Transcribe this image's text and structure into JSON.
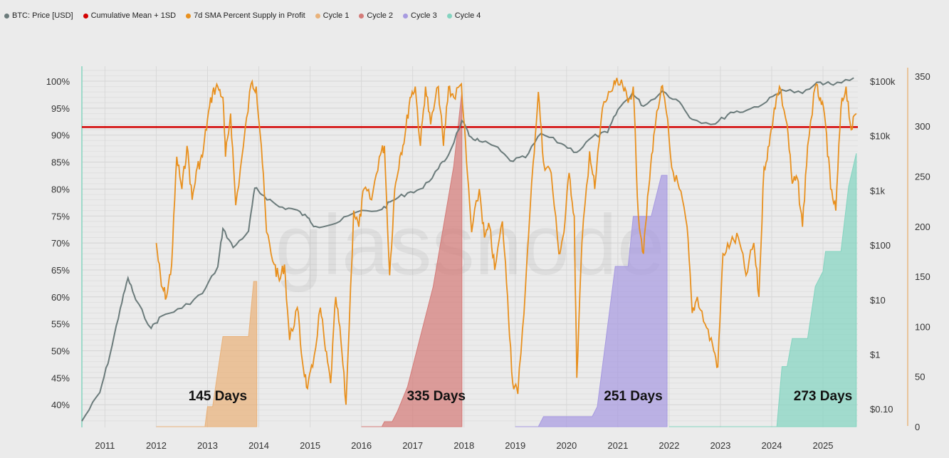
{
  "legend": [
    {
      "label": "BTC: Price [USD]",
      "color": "#6b7b7b"
    },
    {
      "label": "Cumulative Mean + 1SD",
      "color": "#d40000"
    },
    {
      "label": "7d SMA Percent Supply in Profit",
      "color": "#e8901e"
    },
    {
      "label": "Cycle 1",
      "color": "#e9b27a"
    },
    {
      "label": "Cycle 2",
      "color": "#d47b78"
    },
    {
      "label": "Cycle 3",
      "color": "#a79ae0"
    },
    {
      "label": "Cycle 4",
      "color": "#84d4c0"
    }
  ],
  "watermark": "glassnode",
  "chart_data": {
    "type": "line",
    "x_ticks": [
      "2011",
      "2012",
      "2013",
      "2014",
      "2015",
      "2016",
      "2017",
      "2018",
      "2019",
      "2020",
      "2021",
      "2022",
      "2023",
      "2024",
      "2025"
    ],
    "y_left": {
      "ticks": [
        "100%",
        "95%",
        "90%",
        "85%",
        "80%",
        "75%",
        "70%",
        "65%",
        "60%",
        "55%",
        "50%",
        "45%",
        "40%"
      ],
      "range": [
        36.5,
        102.5
      ]
    },
    "y_price": {
      "ticks": [
        "$100k",
        "$10k",
        "$1k",
        "$100",
        "$10",
        "$1",
        "$0.10"
      ],
      "scale": "log"
    },
    "y_days": {
      "ticks": [
        "350",
        "300",
        "250",
        "200",
        "150",
        "100",
        "50",
        "0"
      ],
      "range": [
        0,
        355
      ]
    },
    "threshold_pct": 91.5,
    "annotations": [
      "145 Days",
      "335 Days",
      "251 Days",
      "273 Days"
    ],
    "price_usd": [
      [
        2010.55,
        0.06
      ],
      [
        2010.9,
        0.2
      ],
      [
        2011.1,
        1
      ],
      [
        2011.3,
        7
      ],
      [
        2011.45,
        25
      ],
      [
        2011.6,
        10
      ],
      [
        2011.9,
        3
      ],
      [
        2012.1,
        5
      ],
      [
        2012.5,
        7
      ],
      [
        2012.9,
        13
      ],
      [
        2013.2,
        40
      ],
      [
        2013.3,
        200
      ],
      [
        2013.5,
        90
      ],
      [
        2013.8,
        180
      ],
      [
        2013.92,
        1100
      ],
      [
        2014.1,
        800
      ],
      [
        2014.4,
        500
      ],
      [
        2014.7,
        450
      ],
      [
        2014.95,
        320
      ],
      [
        2015.1,
        220
      ],
      [
        2015.5,
        250
      ],
      [
        2015.9,
        400
      ],
      [
        2016.4,
        450
      ],
      [
        2016.6,
        650
      ],
      [
        2016.9,
        900
      ],
      [
        2017.2,
        1100
      ],
      [
        2017.5,
        2500
      ],
      [
        2017.7,
        4500
      ],
      [
        2017.96,
        19000
      ],
      [
        2018.1,
        10000
      ],
      [
        2018.3,
        8000
      ],
      [
        2018.6,
        6500
      ],
      [
        2018.9,
        3500
      ],
      [
        2019.2,
        4000
      ],
      [
        2019.5,
        11000
      ],
      [
        2019.9,
        7200
      ],
      [
        2020.2,
        5000
      ],
      [
        2020.5,
        9500
      ],
      [
        2020.8,
        11500
      ],
      [
        2021.0,
        30000
      ],
      [
        2021.28,
        60000
      ],
      [
        2021.5,
        35000
      ],
      [
        2021.87,
        66000
      ],
      [
        2022.2,
        42000
      ],
      [
        2022.45,
        20000
      ],
      [
        2022.9,
        16500
      ],
      [
        2023.2,
        27000
      ],
      [
        2023.5,
        29000
      ],
      [
        2023.9,
        42000
      ],
      [
        2024.2,
        70000
      ],
      [
        2024.6,
        60000
      ],
      [
        2024.95,
        96000
      ],
      [
        2025.2,
        85000
      ],
      [
        2025.6,
        115000
      ]
    ],
    "supply_in_profit_pct": [
      [
        2012.0,
        70
      ],
      [
        2012.1,
        62
      ],
      [
        2012.2,
        60
      ],
      [
        2012.3,
        66
      ],
      [
        2012.4,
        86
      ],
      [
        2012.5,
        80
      ],
      [
        2012.6,
        88
      ],
      [
        2012.7,
        78
      ],
      [
        2012.8,
        84
      ],
      [
        2012.9,
        86
      ],
      [
        2013.0,
        93
      ],
      [
        2013.1,
        98
      ],
      [
        2013.2,
        99
      ],
      [
        2013.3,
        97
      ],
      [
        2013.35,
        86
      ],
      [
        2013.45,
        94
      ],
      [
        2013.55,
        77
      ],
      [
        2013.7,
        88
      ],
      [
        2013.85,
        99.5
      ],
      [
        2013.95,
        99
      ],
      [
        2014.05,
        88
      ],
      [
        2014.15,
        72
      ],
      [
        2014.3,
        66
      ],
      [
        2014.4,
        63
      ],
      [
        2014.5,
        66
      ],
      [
        2014.6,
        52
      ],
      [
        2014.75,
        58
      ],
      [
        2014.85,
        48
      ],
      [
        2014.95,
        43
      ],
      [
        2015.05,
        47
      ],
      [
        2015.2,
        58
      ],
      [
        2015.3,
        50
      ],
      [
        2015.4,
        44
      ],
      [
        2015.5,
        60
      ],
      [
        2015.6,
        52
      ],
      [
        2015.7,
        40
      ],
      [
        2015.85,
        76
      ],
      [
        2015.95,
        73
      ],
      [
        2016.05,
        80
      ],
      [
        2016.2,
        78
      ],
      [
        2016.35,
        86
      ],
      [
        2016.45,
        88
      ],
      [
        2016.55,
        64
      ],
      [
        2016.65,
        80
      ],
      [
        2016.75,
        86
      ],
      [
        2016.85,
        90
      ],
      [
        2016.95,
        97
      ],
      [
        2017.05,
        99
      ],
      [
        2017.15,
        88
      ],
      [
        2017.25,
        99
      ],
      [
        2017.35,
        92
      ],
      [
        2017.5,
        99
      ],
      [
        2017.6,
        88
      ],
      [
        2017.7,
        99
      ],
      [
        2017.8,
        97
      ],
      [
        2017.95,
        99.5
      ],
      [
        2018.05,
        85
      ],
      [
        2018.15,
        72
      ],
      [
        2018.3,
        80
      ],
      [
        2018.4,
        71
      ],
      [
        2018.5,
        73
      ],
      [
        2018.6,
        65
      ],
      [
        2018.75,
        74
      ],
      [
        2018.85,
        60
      ],
      [
        2018.95,
        44
      ],
      [
        2019.05,
        42
      ],
      [
        2019.2,
        62
      ],
      [
        2019.35,
        85
      ],
      [
        2019.45,
        98
      ],
      [
        2019.55,
        85
      ],
      [
        2019.7,
        83
      ],
      [
        2019.85,
        68
      ],
      [
        2019.95,
        72
      ],
      [
        2020.05,
        83
      ],
      [
        2020.15,
        75
      ],
      [
        2020.2,
        45
      ],
      [
        2020.3,
        70
      ],
      [
        2020.45,
        87
      ],
      [
        2020.55,
        80
      ],
      [
        2020.7,
        95
      ],
      [
        2020.85,
        98
      ],
      [
        2020.95,
        99.5
      ],
      [
        2021.1,
        99
      ],
      [
        2021.2,
        96
      ],
      [
        2021.3,
        99
      ],
      [
        2021.4,
        75
      ],
      [
        2021.5,
        68
      ],
      [
        2021.6,
        80
      ],
      [
        2021.7,
        90
      ],
      [
        2021.85,
        99
      ],
      [
        2021.95,
        94
      ],
      [
        2022.05,
        84
      ],
      [
        2022.2,
        80
      ],
      [
        2022.35,
        73
      ],
      [
        2022.45,
        57
      ],
      [
        2022.55,
        60
      ],
      [
        2022.7,
        55
      ],
      [
        2022.85,
        51
      ],
      [
        2022.95,
        47
      ],
      [
        2023.05,
        68
      ],
      [
        2023.2,
        70
      ],
      [
        2023.35,
        71
      ],
      [
        2023.5,
        64
      ],
      [
        2023.65,
        70
      ],
      [
        2023.75,
        60
      ],
      [
        2023.85,
        84
      ],
      [
        2023.95,
        88
      ],
      [
        2024.05,
        95
      ],
      [
        2024.15,
        99
      ],
      [
        2024.3,
        92
      ],
      [
        2024.4,
        81
      ],
      [
        2024.5,
        82
      ],
      [
        2024.6,
        73
      ],
      [
        2024.7,
        88
      ],
      [
        2024.85,
        99
      ],
      [
        2024.95,
        97
      ],
      [
        2025.05,
        92
      ],
      [
        2025.15,
        80
      ],
      [
        2025.25,
        76
      ],
      [
        2025.35,
        95
      ],
      [
        2025.45,
        99
      ],
      [
        2025.55,
        91
      ],
      [
        2025.65,
        94
      ]
    ],
    "cycles": [
      {
        "name": "Cycle 1",
        "days": 145,
        "color": "#e9b27a",
        "steps": [
          [
            2012.0,
            0
          ],
          [
            2012.95,
            0
          ],
          [
            2013.0,
            20
          ],
          [
            2013.1,
            20
          ],
          [
            2013.3,
            90
          ],
          [
            2013.8,
            90
          ],
          [
            2013.9,
            145
          ],
          [
            2013.96,
            145
          ],
          [
            2013.96,
            0
          ]
        ]
      },
      {
        "name": "Cycle 2",
        "days": 335,
        "color": "#d47b78",
        "steps": [
          [
            2016.0,
            0
          ],
          [
            2016.4,
            0
          ],
          [
            2016.45,
            5
          ],
          [
            2016.6,
            5
          ],
          [
            2016.7,
            15
          ],
          [
            2016.9,
            40
          ],
          [
            2017.1,
            80
          ],
          [
            2017.4,
            140
          ],
          [
            2017.6,
            200
          ],
          [
            2017.8,
            260
          ],
          [
            2017.96,
            335
          ],
          [
            2017.96,
            0
          ]
        ]
      },
      {
        "name": "Cycle 3",
        "days": 251,
        "color": "#a79ae0",
        "steps": [
          [
            2019.0,
            0
          ],
          [
            2019.45,
            0
          ],
          [
            2019.55,
            10
          ],
          [
            2020.5,
            10
          ],
          [
            2020.6,
            20
          ],
          [
            2020.8,
            100
          ],
          [
            2020.95,
            160
          ],
          [
            2021.2,
            160
          ],
          [
            2021.3,
            210
          ],
          [
            2021.65,
            210
          ],
          [
            2021.85,
            251
          ],
          [
            2021.96,
            251
          ],
          [
            2021.96,
            0
          ]
        ]
      },
      {
        "name": "Cycle 4",
        "days": 273,
        "color": "#84d4c0",
        "steps": [
          [
            2022.0,
            0
          ],
          [
            2024.1,
            0
          ],
          [
            2024.2,
            60
          ],
          [
            2024.3,
            60
          ],
          [
            2024.4,
            88
          ],
          [
            2024.7,
            88
          ],
          [
            2024.85,
            140
          ],
          [
            2025.0,
            155
          ],
          [
            2025.05,
            175
          ],
          [
            2025.35,
            175
          ],
          [
            2025.5,
            240
          ],
          [
            2025.65,
            273
          ],
          [
            2025.65,
            0
          ]
        ]
      }
    ]
  }
}
